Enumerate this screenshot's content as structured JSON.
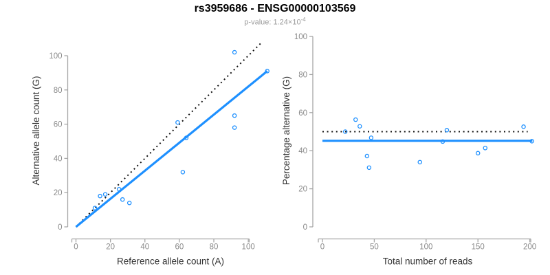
{
  "page": {
    "title": "rs3959686 - ENSG00000103569",
    "subtitle_base": "p-value: 1.24×10",
    "subtitle_exponent": "-4"
  },
  "colors": {
    "accent_blue": "#1E90FF",
    "dotted_black": "#111111",
    "axis_gray": "#a6a6a6",
    "tick_label_gray": "#8a8a8a",
    "axis_title_dark": "#333333",
    "subtitle_gray": "#9a9a9a"
  },
  "chart_data": [
    {
      "type": "scatter",
      "name": "allele-counts-scatter",
      "title": "",
      "xlabel": "Reference allele count (A)",
      "ylabel": "Alternative allele count (G)",
      "xlim": [
        0,
        112
      ],
      "ylim": [
        0,
        112
      ],
      "xticks": [
        0,
        20,
        40,
        60,
        80,
        100
      ],
      "yticks": [
        0,
        20,
        40,
        60,
        80,
        100
      ],
      "grid": false,
      "legend": "none",
      "points": [
        [
          11,
          11
        ],
        [
          14,
          18
        ],
        [
          17,
          19
        ],
        [
          25,
          22
        ],
        [
          27,
          16
        ],
        [
          31,
          14
        ],
        [
          59,
          61
        ],
        [
          62,
          32
        ],
        [
          64,
          52
        ],
        [
          92,
          58
        ],
        [
          92,
          65
        ],
        [
          92,
          102
        ],
        [
          111,
          91
        ]
      ],
      "lines": [
        {
          "name": "identity-line",
          "style": "dotted",
          "color": "#111111",
          "width": 2,
          "from": [
            0,
            0
          ],
          "to": [
            108,
            108
          ]
        },
        {
          "name": "fit-line",
          "style": "solid",
          "color": "#1E90FF",
          "width": 3.2,
          "from": [
            0,
            0
          ],
          "to": [
            111,
            91
          ]
        }
      ]
    },
    {
      "type": "scatter",
      "name": "percentage-vs-reads-scatter",
      "title": "",
      "xlabel": "Total number of reads",
      "ylabel": "Percentage alternative (G)",
      "xlim": [
        0,
        205
      ],
      "ylim": [
        0,
        100
      ],
      "xticks": [
        0,
        50,
        100,
        150,
        200
      ],
      "yticks": [
        0,
        20,
        40,
        60,
        80,
        100
      ],
      "grid": false,
      "legend": "none",
      "points": [
        [
          22,
          50
        ],
        [
          32,
          56.3
        ],
        [
          36,
          52.8
        ],
        [
          43,
          37.2
        ],
        [
          45,
          31.1
        ],
        [
          47,
          46.8
        ],
        [
          94,
          34
        ],
        [
          116,
          44.8
        ],
        [
          120,
          50.8
        ],
        [
          150,
          38.7
        ],
        [
          157,
          41.4
        ],
        [
          194,
          52.6
        ],
        [
          202,
          45
        ]
      ],
      "lines": [
        {
          "name": "expected-50pct-line",
          "style": "dotted",
          "color": "#111111",
          "width": 2,
          "from": [
            0,
            50
          ],
          "to": [
            198,
            50
          ]
        },
        {
          "name": "fit-percentage-line",
          "style": "solid",
          "color": "#1E90FF",
          "width": 3.2,
          "from": [
            0,
            45.2
          ],
          "to": [
            202.5,
            45.2
          ]
        }
      ]
    }
  ]
}
